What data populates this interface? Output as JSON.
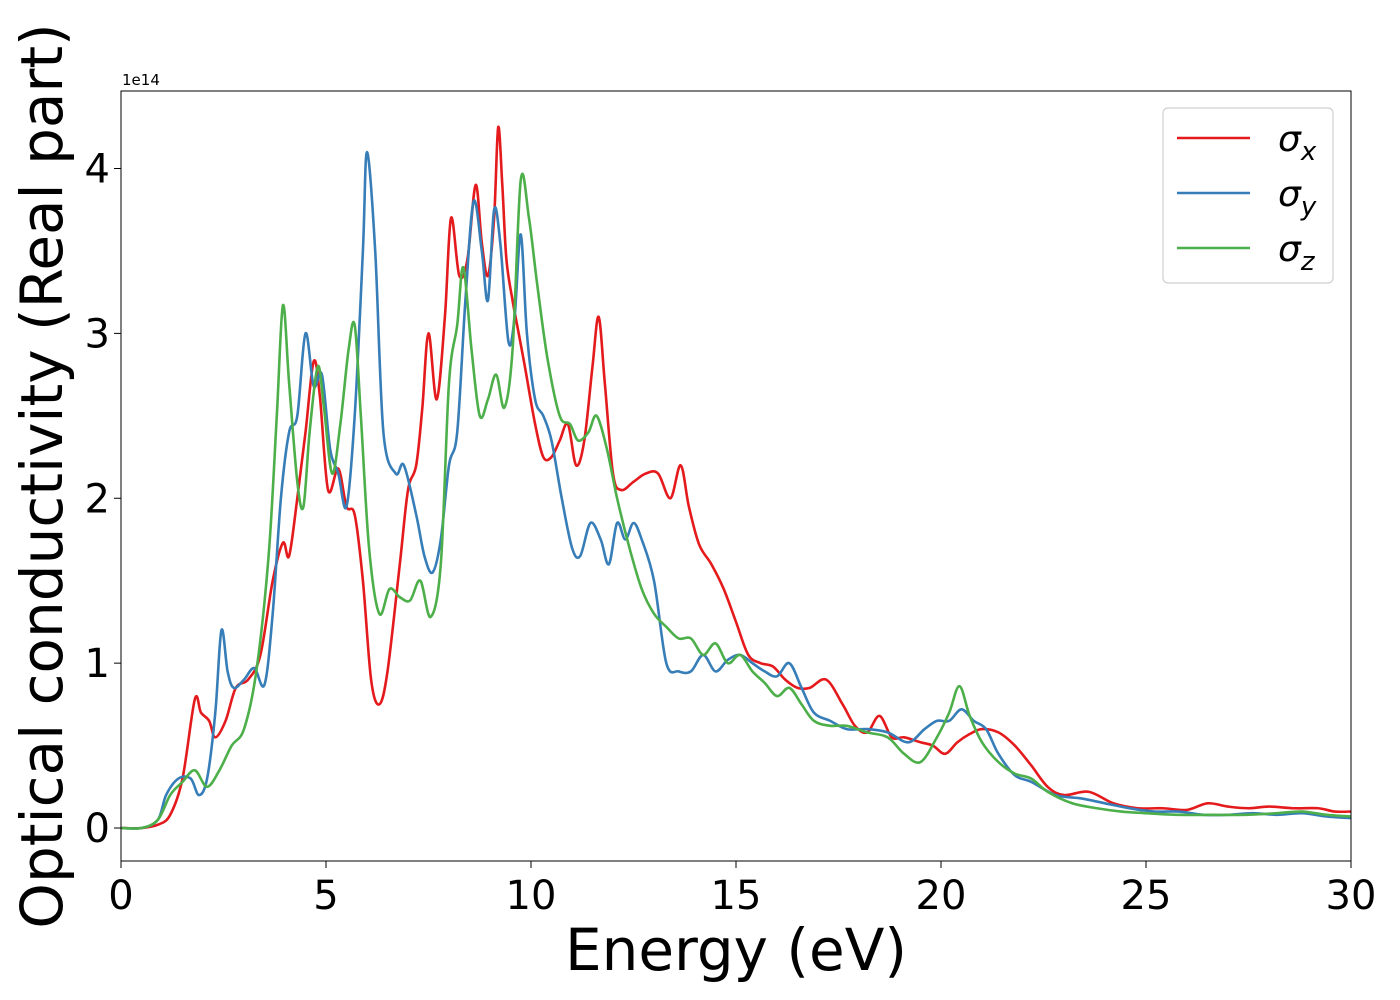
{
  "chart_data": {
    "type": "line",
    "xlabel": "Energy (eV)",
    "ylabel": "Optical conductivity (Real part)",
    "y_offset_label": "1e14",
    "xlim": [
      0,
      30
    ],
    "ylim": [
      -0.2,
      4.47
    ],
    "x_ticks": [
      0,
      5,
      10,
      15,
      20,
      25,
      30
    ],
    "y_ticks": [
      0,
      1,
      2,
      3,
      4
    ],
    "legend_position": "top-right",
    "grid": false,
    "series": [
      {
        "name": "σx",
        "base": "σ",
        "sub": "x",
        "color": "#e41a1c",
        "points": [
          [
            0,
            0
          ],
          [
            0.5,
            0
          ],
          [
            0.9,
            0.02
          ],
          [
            1.2,
            0.08
          ],
          [
            1.5,
            0.3
          ],
          [
            1.8,
            0.78
          ],
          [
            1.95,
            0.7
          ],
          [
            2.15,
            0.65
          ],
          [
            2.3,
            0.55
          ],
          [
            2.55,
            0.65
          ],
          [
            2.8,
            0.85
          ],
          [
            3.1,
            0.9
          ],
          [
            3.4,
            1.05
          ],
          [
            3.7,
            1.5
          ],
          [
            3.95,
            1.73
          ],
          [
            4.1,
            1.65
          ],
          [
            4.3,
            2.0
          ],
          [
            4.5,
            2.4
          ],
          [
            4.7,
            2.83
          ],
          [
            4.85,
            2.62
          ],
          [
            5.05,
            2.05
          ],
          [
            5.3,
            2.18
          ],
          [
            5.5,
            1.95
          ],
          [
            5.7,
            1.9
          ],
          [
            5.9,
            1.5
          ],
          [
            6.1,
            0.9
          ],
          [
            6.3,
            0.75
          ],
          [
            6.5,
            0.95
          ],
          [
            6.8,
            1.6
          ],
          [
            7.0,
            2.05
          ],
          [
            7.2,
            2.2
          ],
          [
            7.35,
            2.55
          ],
          [
            7.5,
            3.0
          ],
          [
            7.7,
            2.6
          ],
          [
            7.9,
            3.1
          ],
          [
            8.05,
            3.7
          ],
          [
            8.25,
            3.35
          ],
          [
            8.45,
            3.45
          ],
          [
            8.65,
            3.9
          ],
          [
            8.8,
            3.55
          ],
          [
            8.95,
            3.35
          ],
          [
            9.1,
            3.7
          ],
          [
            9.2,
            4.25
          ],
          [
            9.3,
            3.9
          ],
          [
            9.4,
            3.45
          ],
          [
            9.55,
            3.2
          ],
          [
            9.7,
            3.0
          ],
          [
            9.85,
            2.8
          ],
          [
            10.1,
            2.45
          ],
          [
            10.3,
            2.25
          ],
          [
            10.5,
            2.25
          ],
          [
            10.7,
            2.35
          ],
          [
            10.9,
            2.45
          ],
          [
            11.1,
            2.2
          ],
          [
            11.3,
            2.35
          ],
          [
            11.5,
            2.8
          ],
          [
            11.65,
            3.1
          ],
          [
            11.8,
            2.7
          ],
          [
            12.0,
            2.15
          ],
          [
            12.2,
            2.05
          ],
          [
            12.5,
            2.1
          ],
          [
            12.8,
            2.15
          ],
          [
            13.1,
            2.15
          ],
          [
            13.4,
            2.0
          ],
          [
            13.65,
            2.2
          ],
          [
            13.85,
            1.95
          ],
          [
            14.1,
            1.72
          ],
          [
            14.4,
            1.6
          ],
          [
            14.7,
            1.45
          ],
          [
            15.0,
            1.25
          ],
          [
            15.3,
            1.05
          ],
          [
            15.6,
            1.0
          ],
          [
            15.9,
            0.98
          ],
          [
            16.2,
            0.9
          ],
          [
            16.5,
            0.85
          ],
          [
            16.8,
            0.85
          ],
          [
            17.2,
            0.9
          ],
          [
            17.6,
            0.75
          ],
          [
            17.9,
            0.62
          ],
          [
            18.2,
            0.58
          ],
          [
            18.5,
            0.68
          ],
          [
            18.8,
            0.55
          ],
          [
            19.1,
            0.55
          ],
          [
            19.5,
            0.52
          ],
          [
            19.8,
            0.5
          ],
          [
            20.1,
            0.45
          ],
          [
            20.4,
            0.52
          ],
          [
            20.7,
            0.57
          ],
          [
            21.0,
            0.6
          ],
          [
            21.4,
            0.58
          ],
          [
            21.8,
            0.5
          ],
          [
            22.2,
            0.38
          ],
          [
            22.6,
            0.25
          ],
          [
            23.0,
            0.2
          ],
          [
            23.6,
            0.22
          ],
          [
            24.2,
            0.15
          ],
          [
            24.8,
            0.12
          ],
          [
            25.4,
            0.12
          ],
          [
            26.0,
            0.11
          ],
          [
            26.5,
            0.15
          ],
          [
            27.0,
            0.13
          ],
          [
            27.5,
            0.12
          ],
          [
            28.0,
            0.13
          ],
          [
            28.6,
            0.12
          ],
          [
            29.2,
            0.12
          ],
          [
            29.6,
            0.1
          ],
          [
            30.0,
            0.1
          ]
        ]
      },
      {
        "name": "σy",
        "base": "σ",
        "sub": "y",
        "color": "#377eb8",
        "points": [
          [
            0,
            0
          ],
          [
            0.5,
            0
          ],
          [
            0.9,
            0.05
          ],
          [
            1.1,
            0.2
          ],
          [
            1.4,
            0.3
          ],
          [
            1.7,
            0.3
          ],
          [
            1.9,
            0.2
          ],
          [
            2.1,
            0.3
          ],
          [
            2.3,
            0.7
          ],
          [
            2.45,
            1.2
          ],
          [
            2.6,
            0.95
          ],
          [
            2.75,
            0.85
          ],
          [
            3.0,
            0.9
          ],
          [
            3.25,
            0.97
          ],
          [
            3.5,
            0.87
          ],
          [
            3.7,
            1.3
          ],
          [
            3.9,
            2.0
          ],
          [
            4.1,
            2.4
          ],
          [
            4.3,
            2.5
          ],
          [
            4.5,
            3.0
          ],
          [
            4.7,
            2.68
          ],
          [
            4.9,
            2.75
          ],
          [
            5.1,
            2.3
          ],
          [
            5.3,
            2.15
          ],
          [
            5.5,
            1.95
          ],
          [
            5.7,
            2.5
          ],
          [
            5.9,
            3.5
          ],
          [
            6.0,
            4.1
          ],
          [
            6.2,
            3.5
          ],
          [
            6.4,
            2.4
          ],
          [
            6.7,
            2.15
          ],
          [
            6.9,
            2.2
          ],
          [
            7.2,
            1.9
          ],
          [
            7.4,
            1.65
          ],
          [
            7.6,
            1.55
          ],
          [
            7.8,
            1.75
          ],
          [
            8.0,
            2.2
          ],
          [
            8.2,
            2.4
          ],
          [
            8.4,
            3.2
          ],
          [
            8.6,
            3.8
          ],
          [
            8.8,
            3.5
          ],
          [
            8.95,
            3.2
          ],
          [
            9.1,
            3.75
          ],
          [
            9.25,
            3.55
          ],
          [
            9.45,
            2.95
          ],
          [
            9.6,
            3.1
          ],
          [
            9.75,
            3.6
          ],
          [
            9.9,
            3.0
          ],
          [
            10.1,
            2.6
          ],
          [
            10.3,
            2.5
          ],
          [
            10.5,
            2.35
          ],
          [
            10.75,
            2.0
          ],
          [
            11.0,
            1.7
          ],
          [
            11.2,
            1.65
          ],
          [
            11.45,
            1.85
          ],
          [
            11.7,
            1.75
          ],
          [
            11.9,
            1.6
          ],
          [
            12.1,
            1.85
          ],
          [
            12.3,
            1.75
          ],
          [
            12.5,
            1.85
          ],
          [
            12.7,
            1.75
          ],
          [
            13.0,
            1.5
          ],
          [
            13.3,
            1.0
          ],
          [
            13.6,
            0.95
          ],
          [
            13.9,
            0.95
          ],
          [
            14.2,
            1.05
          ],
          [
            14.5,
            0.95
          ],
          [
            14.8,
            1.02
          ],
          [
            15.1,
            1.05
          ],
          [
            15.4,
            1.0
          ],
          [
            15.7,
            0.95
          ],
          [
            16.0,
            0.92
          ],
          [
            16.3,
            1.0
          ],
          [
            16.6,
            0.85
          ],
          [
            16.9,
            0.7
          ],
          [
            17.3,
            0.65
          ],
          [
            17.7,
            0.6
          ],
          [
            18.2,
            0.6
          ],
          [
            18.7,
            0.58
          ],
          [
            19.2,
            0.52
          ],
          [
            19.6,
            0.6
          ],
          [
            19.9,
            0.65
          ],
          [
            20.2,
            0.65
          ],
          [
            20.5,
            0.72
          ],
          [
            20.8,
            0.65
          ],
          [
            21.1,
            0.6
          ],
          [
            21.4,
            0.45
          ],
          [
            21.8,
            0.32
          ],
          [
            22.2,
            0.28
          ],
          [
            22.8,
            0.2
          ],
          [
            23.4,
            0.18
          ],
          [
            24.0,
            0.15
          ],
          [
            24.6,
            0.12
          ],
          [
            25.2,
            0.1
          ],
          [
            25.8,
            0.1
          ],
          [
            26.4,
            0.08
          ],
          [
            27.0,
            0.08
          ],
          [
            27.6,
            0.09
          ],
          [
            28.2,
            0.08
          ],
          [
            28.8,
            0.09
          ],
          [
            29.4,
            0.07
          ],
          [
            30.0,
            0.06
          ]
        ]
      },
      {
        "name": "σz",
        "base": "σ",
        "sub": "z",
        "color": "#4daf4a",
        "points": [
          [
            0,
            0
          ],
          [
            0.5,
            0
          ],
          [
            0.9,
            0.05
          ],
          [
            1.2,
            0.2
          ],
          [
            1.5,
            0.28
          ],
          [
            1.8,
            0.35
          ],
          [
            2.1,
            0.25
          ],
          [
            2.4,
            0.35
          ],
          [
            2.7,
            0.5
          ],
          [
            3.0,
            0.6
          ],
          [
            3.3,
            0.95
          ],
          [
            3.6,
            1.65
          ],
          [
            3.8,
            2.5
          ],
          [
            3.95,
            3.17
          ],
          [
            4.1,
            2.7
          ],
          [
            4.3,
            2.1
          ],
          [
            4.45,
            1.95
          ],
          [
            4.6,
            2.4
          ],
          [
            4.8,
            2.8
          ],
          [
            4.95,
            2.55
          ],
          [
            5.15,
            2.15
          ],
          [
            5.35,
            2.45
          ],
          [
            5.55,
            2.9
          ],
          [
            5.7,
            3.05
          ],
          [
            5.85,
            2.5
          ],
          [
            6.05,
            1.7
          ],
          [
            6.3,
            1.3
          ],
          [
            6.55,
            1.45
          ],
          [
            6.8,
            1.4
          ],
          [
            7.05,
            1.38
          ],
          [
            7.3,
            1.5
          ],
          [
            7.55,
            1.28
          ],
          [
            7.8,
            1.6
          ],
          [
            8.0,
            2.7
          ],
          [
            8.2,
            3.05
          ],
          [
            8.35,
            3.4
          ],
          [
            8.55,
            2.9
          ],
          [
            8.75,
            2.5
          ],
          [
            8.95,
            2.6
          ],
          [
            9.15,
            2.75
          ],
          [
            9.35,
            2.55
          ],
          [
            9.55,
            2.9
          ],
          [
            9.75,
            3.93
          ],
          [
            9.95,
            3.7
          ],
          [
            10.15,
            3.3
          ],
          [
            10.4,
            2.85
          ],
          [
            10.7,
            2.5
          ],
          [
            10.95,
            2.45
          ],
          [
            11.15,
            2.35
          ],
          [
            11.4,
            2.4
          ],
          [
            11.6,
            2.5
          ],
          [
            11.85,
            2.3
          ],
          [
            12.1,
            2.0
          ],
          [
            12.4,
            1.7
          ],
          [
            12.7,
            1.45
          ],
          [
            13.0,
            1.3
          ],
          [
            13.3,
            1.22
          ],
          [
            13.6,
            1.15
          ],
          [
            13.9,
            1.15
          ],
          [
            14.2,
            1.05
          ],
          [
            14.5,
            1.12
          ],
          [
            14.8,
            1.0
          ],
          [
            15.1,
            1.05
          ],
          [
            15.4,
            0.95
          ],
          [
            15.7,
            0.88
          ],
          [
            16.0,
            0.8
          ],
          [
            16.3,
            0.85
          ],
          [
            16.6,
            0.75
          ],
          [
            16.9,
            0.65
          ],
          [
            17.3,
            0.62
          ],
          [
            17.7,
            0.62
          ],
          [
            18.2,
            0.58
          ],
          [
            18.7,
            0.55
          ],
          [
            19.1,
            0.45
          ],
          [
            19.5,
            0.4
          ],
          [
            19.9,
            0.55
          ],
          [
            20.2,
            0.7
          ],
          [
            20.45,
            0.86
          ],
          [
            20.7,
            0.68
          ],
          [
            21.0,
            0.52
          ],
          [
            21.4,
            0.4
          ],
          [
            21.8,
            0.33
          ],
          [
            22.2,
            0.3
          ],
          [
            22.6,
            0.22
          ],
          [
            23.2,
            0.15
          ],
          [
            23.8,
            0.12
          ],
          [
            24.4,
            0.1
          ],
          [
            25.0,
            0.09
          ],
          [
            25.8,
            0.08
          ],
          [
            26.6,
            0.08
          ],
          [
            27.4,
            0.08
          ],
          [
            28.2,
            0.09
          ],
          [
            28.8,
            0.1
          ],
          [
            29.4,
            0.08
          ],
          [
            30.0,
            0.07
          ]
        ]
      }
    ]
  }
}
